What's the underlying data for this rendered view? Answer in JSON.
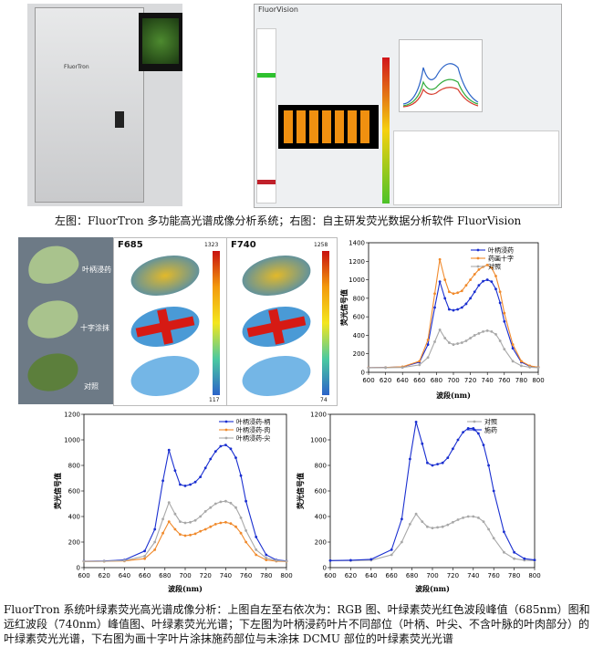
{
  "top_caption": "左图：FluorTron 多功能高光谱成像分析系统；右图：自主研发荧光数据分析软件 FluorVision",
  "bottom_caption": "FluorTron 系统叶绿素荧光高光谱成像分析：上图自左至右依次为：RGB 图、叶绿素荧光红色波段峰值（685nm）图和远红波段（740nm）峰值图、叶绿素荧光光谱；下左图为叶柄浸药叶片不同部位（叶柄、叶尖、不含叶脉的叶肉部分）的叶绿素荧光光谱，下右图为画十字叶片涂抹施药部位与未涂抹 DCMU 部位的叶绿素荧光光谱",
  "instrument": {
    "brand": "FluorTron"
  },
  "software": {
    "title": "FluorVision"
  },
  "leaf_panel": {
    "labels": [
      "叶柄浸药",
      "十字涂抹",
      "对照"
    ],
    "f685": {
      "title": "F685",
      "max": "1323",
      "min": "117"
    },
    "f740": {
      "title": "F740",
      "max": "1258",
      "min": "74"
    }
  },
  "colors": {
    "blue": "#1a2fd0",
    "orange": "#f08a2c",
    "gray": "#a8a8a8"
  },
  "chart_data": [
    {
      "type": "line",
      "xlabel": "波段(nm)",
      "ylabel": "荧光信号值",
      "xlim": [
        600,
        800
      ],
      "ylim": [
        0,
        1400
      ],
      "xticks": [
        600,
        620,
        640,
        660,
        680,
        700,
        720,
        740,
        760,
        780,
        800
      ],
      "yticks": [
        0,
        200,
        400,
        600,
        800,
        1000,
        1200,
        1400
      ],
      "legend": "top-right",
      "x": [
        600,
        620,
        640,
        660,
        670,
        678,
        684,
        690,
        695,
        700,
        705,
        710,
        715,
        720,
        725,
        730,
        735,
        740,
        745,
        750,
        755,
        760,
        770,
        780,
        790,
        800
      ],
      "series": [
        {
          "name": "叶柄浸药",
          "color": "blue",
          "values": [
            50,
            52,
            58,
            110,
            300,
            700,
            980,
            800,
            680,
            670,
            680,
            700,
            740,
            800,
            870,
            940,
            985,
            1000,
            980,
            900,
            750,
            550,
            260,
            110,
            65,
            55
          ]
        },
        {
          "name": "药画十字",
          "color": "orange",
          "values": [
            50,
            52,
            60,
            120,
            350,
            850,
            1220,
            1000,
            870,
            850,
            860,
            880,
            940,
            1000,
            1060,
            1110,
            1140,
            1160,
            1130,
            1040,
            870,
            640,
            300,
            120,
            70,
            55
          ]
        },
        {
          "name": "对照",
          "color": "gray",
          "values": [
            48,
            50,
            52,
            80,
            160,
            330,
            460,
            370,
            320,
            300,
            310,
            320,
            340,
            370,
            400,
            420,
            440,
            450,
            440,
            410,
            340,
            250,
            120,
            70,
            55,
            50
          ]
        }
      ]
    },
    {
      "type": "line",
      "xlabel": "波段(nm)",
      "ylabel": "荧光信号值",
      "xlim": [
        600,
        800
      ],
      "ylim": [
        0,
        1200
      ],
      "xticks": [
        600,
        620,
        640,
        660,
        680,
        700,
        720,
        740,
        760,
        780,
        800
      ],
      "yticks": [
        0,
        200,
        400,
        600,
        800,
        1000,
        1200
      ],
      "legend": "top-right",
      "x": [
        600,
        620,
        640,
        660,
        670,
        678,
        684,
        690,
        695,
        700,
        705,
        710,
        715,
        720,
        725,
        730,
        735,
        740,
        745,
        750,
        755,
        760,
        770,
        780,
        790,
        800
      ],
      "series": [
        {
          "name": "叶柄浸药-柄",
          "color": "blue",
          "values": [
            50,
            52,
            60,
            130,
            300,
            680,
            920,
            760,
            650,
            640,
            650,
            670,
            710,
            780,
            850,
            910,
            950,
            960,
            930,
            860,
            720,
            520,
            240,
            100,
            60,
            52
          ]
        },
        {
          "name": "叶柄浸药-肉",
          "color": "orange",
          "values": [
            48,
            49,
            52,
            70,
            140,
            270,
            360,
            300,
            260,
            250,
            255,
            265,
            285,
            300,
            320,
            340,
            350,
            355,
            345,
            320,
            270,
            200,
            100,
            60,
            50,
            48
          ]
        },
        {
          "name": "叶柄浸药-尖",
          "color": "gray",
          "values": [
            48,
            50,
            55,
            90,
            200,
            380,
            510,
            420,
            360,
            350,
            355,
            370,
            400,
            440,
            470,
            500,
            515,
            520,
            505,
            470,
            390,
            290,
            140,
            75,
            55,
            50
          ]
        }
      ]
    },
    {
      "type": "line",
      "xlabel": "波段(nm)",
      "ylabel": "荧光信号值",
      "xlim": [
        600,
        800
      ],
      "ylim": [
        0,
        1200
      ],
      "xticks": [
        600,
        620,
        640,
        660,
        680,
        700,
        720,
        740,
        760,
        780,
        800
      ],
      "yticks": [
        0,
        200,
        400,
        600,
        800,
        1000,
        1200
      ],
      "legend": "top-right",
      "x": [
        600,
        620,
        640,
        660,
        670,
        678,
        684,
        690,
        695,
        700,
        705,
        710,
        715,
        720,
        725,
        730,
        735,
        740,
        745,
        750,
        755,
        760,
        770,
        780,
        790,
        800
      ],
      "series": [
        {
          "name": "对照",
          "color": "gray",
          "values": [
            55,
            55,
            58,
            100,
            200,
            340,
            420,
            360,
            320,
            310,
            315,
            320,
            335,
            355,
            375,
            390,
            400,
            400,
            390,
            360,
            300,
            230,
            120,
            70,
            58,
            55
          ]
        },
        {
          "name": "施药",
          "color": "blue",
          "values": [
            55,
            58,
            65,
            140,
            380,
            850,
            1140,
            970,
            820,
            800,
            810,
            820,
            860,
            930,
            1000,
            1060,
            1090,
            1090,
            1050,
            960,
            800,
            600,
            280,
            120,
            70,
            60
          ]
        }
      ]
    }
  ]
}
